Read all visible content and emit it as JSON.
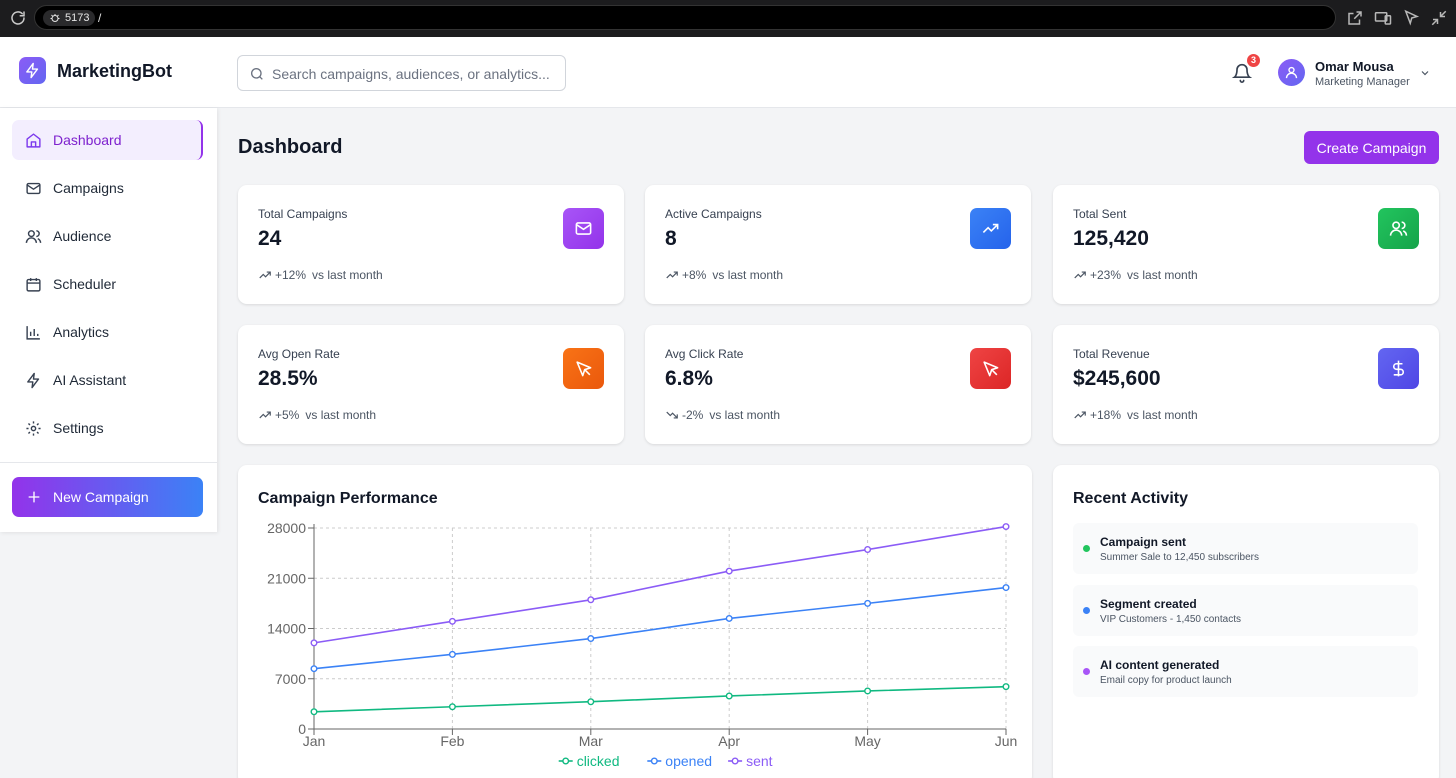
{
  "browser": {
    "port": "5173",
    "path": "/"
  },
  "brand": {
    "name": "MarketingBot"
  },
  "search": {
    "placeholder": "Search campaigns, audiences, or analytics..."
  },
  "notifications": {
    "count": "3"
  },
  "user": {
    "name": "Omar Mousa",
    "role": "Marketing Manager"
  },
  "sidebar": {
    "items": [
      {
        "label": "Dashboard",
        "icon": "home-icon",
        "active": true
      },
      {
        "label": "Campaigns",
        "icon": "mail-icon"
      },
      {
        "label": "Audience",
        "icon": "users-icon"
      },
      {
        "label": "Scheduler",
        "icon": "calendar-icon"
      },
      {
        "label": "Analytics",
        "icon": "bar-chart-icon"
      },
      {
        "label": "AI Assistant",
        "icon": "zap-icon"
      },
      {
        "label": "Settings",
        "icon": "gear-icon"
      }
    ],
    "new_campaign": "New Campaign"
  },
  "page": {
    "title": "Dashboard",
    "create_button": "Create Campaign"
  },
  "stats": [
    {
      "label": "Total Campaigns",
      "value": "24",
      "change": "+12%",
      "direction": "up",
      "suffix": "vs last month",
      "icon": "mail-icon",
      "color": "#9333ea"
    },
    {
      "label": "Active Campaigns",
      "value": "8",
      "change": "+8%",
      "direction": "up",
      "suffix": "vs last month",
      "icon": "trending-up-icon",
      "color": "#2563eb"
    },
    {
      "label": "Total Sent",
      "value": "125,420",
      "change": "+23%",
      "direction": "up",
      "suffix": "vs last month",
      "icon": "users-icon",
      "color": "#16a34a"
    },
    {
      "label": "Avg Open Rate",
      "value": "28.5%",
      "change": "+5%",
      "direction": "up",
      "suffix": "vs last month",
      "icon": "cursor-icon",
      "color": "#ea580c"
    },
    {
      "label": "Avg Click Rate",
      "value": "6.8%",
      "change": "-2%",
      "direction": "down",
      "suffix": "vs last month",
      "icon": "cursor-icon",
      "color": "#dc2626"
    },
    {
      "label": "Total Revenue",
      "value": "$245,600",
      "change": "+18%",
      "direction": "up",
      "suffix": "vs last month",
      "icon": "dollar-icon",
      "color": "#4f46e5"
    }
  ],
  "performance": {
    "title": "Campaign Performance"
  },
  "chart_data": {
    "type": "line",
    "title": "Campaign Performance",
    "categories": [
      "Jan",
      "Feb",
      "Mar",
      "Apr",
      "May",
      "Jun"
    ],
    "yticks": [
      0,
      7000,
      14000,
      21000,
      28000
    ],
    "ylim": [
      0,
      28000
    ],
    "grid": true,
    "legend_position": "bottom",
    "series": [
      {
        "name": "clicked",
        "color": "#10b981",
        "values": [
          2400,
          3100,
          3800,
          4600,
          5300,
          5900
        ]
      },
      {
        "name": "opened",
        "color": "#3b82f6",
        "values": [
          8400,
          10400,
          12600,
          15400,
          17500,
          19700
        ]
      },
      {
        "name": "sent",
        "color": "#8b5cf6",
        "values": [
          12000,
          15000,
          18000,
          22000,
          25000,
          28200
        ]
      }
    ]
  },
  "activity": {
    "title": "Recent Activity",
    "items": [
      {
        "title": "Campaign sent",
        "subtitle": "Summer Sale to 12,450 subscribers",
        "color": "#22c55e"
      },
      {
        "title": "Segment created",
        "subtitle": "VIP Customers - 1,450 contacts",
        "color": "#3b82f6"
      },
      {
        "title": "AI content generated",
        "subtitle": "Email copy for product launch",
        "color": "#a855f7"
      }
    ]
  }
}
